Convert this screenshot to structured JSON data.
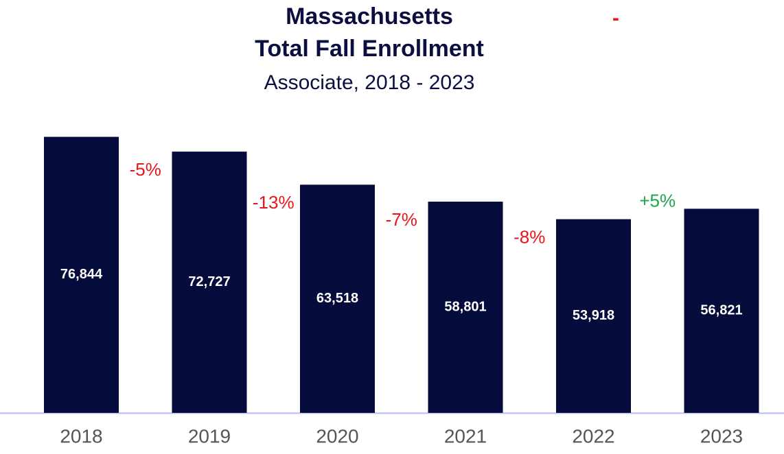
{
  "chart_data": {
    "type": "bar",
    "title": "Massachusetts",
    "title_line2": "Total Fall Enrollment",
    "title_mark": "-",
    "subtitle": "Associate, 2018 - 2023",
    "categories": [
      "2018",
      "2019",
      "2020",
      "2021",
      "2022",
      "2023"
    ],
    "values": [
      76844,
      72727,
      63518,
      58801,
      53918,
      56821
    ],
    "value_labels": [
      "76,844",
      "72,727",
      "63,518",
      "58,801",
      "53,918",
      "56,821"
    ],
    "color": "#050b3b",
    "ylim": [
      0,
      80000
    ],
    "annotations": [
      {
        "text": "-5%",
        "color": "#e8161b"
      },
      {
        "text": "-13%",
        "color": "#e8161b"
      },
      {
        "text": "-7%",
        "color": "#e8161b"
      },
      {
        "text": "-8%",
        "color": "#e8161b"
      },
      {
        "text": "+5%",
        "color": "#1aa84a"
      }
    ]
  }
}
